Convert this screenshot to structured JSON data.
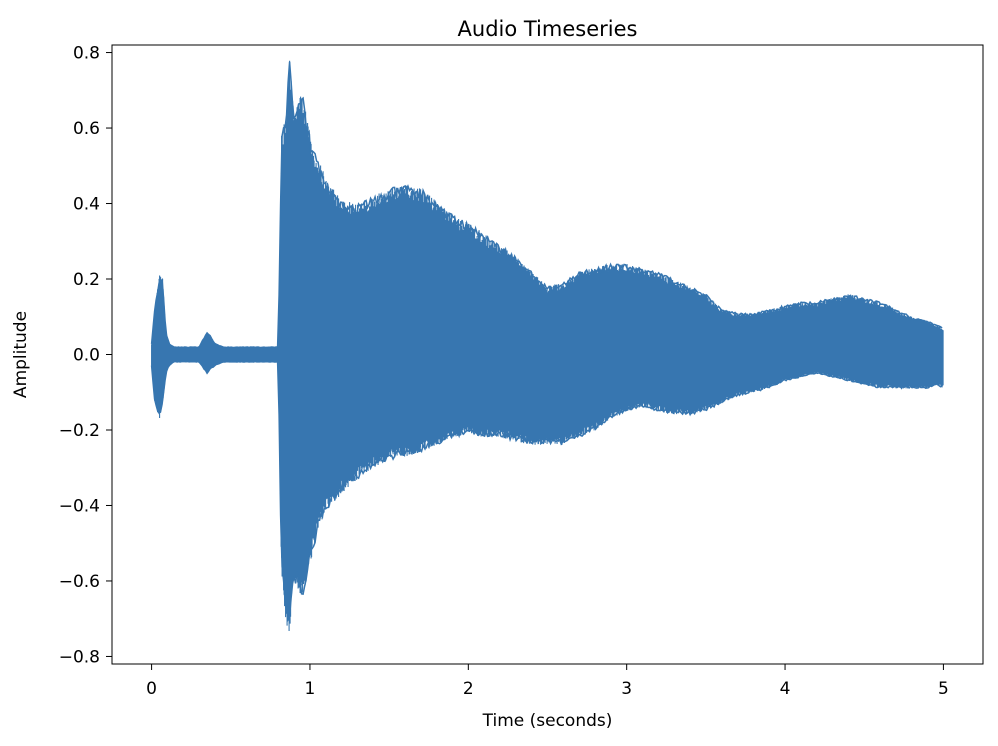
{
  "chart_data": {
    "type": "line",
    "title": "Audio Timeseries",
    "xlabel": "Time (seconds)",
    "ylabel": "Amplitude",
    "xlim": [
      -0.25,
      5.25
    ],
    "ylim": [
      -0.82,
      0.82
    ],
    "x_ticks": [
      0,
      1,
      2,
      3,
      4,
      5
    ],
    "x_tick_labels": [
      "0",
      "1",
      "2",
      "3",
      "4",
      "5"
    ],
    "y_ticks": [
      -0.8,
      -0.6,
      -0.4,
      -0.2,
      0.0,
      0.2,
      0.4,
      0.6,
      0.8
    ],
    "y_tick_labels": [
      "−0.8",
      "−0.6",
      "−0.4",
      "−0.2",
      "0.0",
      "0.2",
      "0.4",
      "0.6",
      "0.8"
    ],
    "grid": false,
    "series": [
      {
        "color": "#3776b0",
        "envelope": {
          "x": [
            0.0,
            0.02,
            0.05,
            0.07,
            0.09,
            0.11,
            0.14,
            0.3,
            0.35,
            0.37,
            0.4,
            0.45,
            0.6,
            0.8,
            0.81,
            0.82,
            0.85,
            0.87,
            0.9,
            0.95,
            1.0,
            1.05,
            1.1,
            1.2,
            1.3,
            1.4,
            1.5,
            1.6,
            1.7,
            1.8,
            1.9,
            2.0,
            2.1,
            2.2,
            2.3,
            2.4,
            2.5,
            2.6,
            2.7,
            2.8,
            2.9,
            3.0,
            3.1,
            3.2,
            3.3,
            3.4,
            3.5,
            3.6,
            3.7,
            3.8,
            3.9,
            4.0,
            4.1,
            4.2,
            4.3,
            4.4,
            4.5,
            4.6,
            4.7,
            4.8,
            4.9,
            4.95,
            5.0
          ],
          "upper": [
            0.03,
            0.12,
            0.21,
            0.2,
            0.06,
            0.03,
            0.02,
            0.02,
            0.06,
            0.05,
            0.03,
            0.02,
            0.02,
            0.02,
            0.3,
            0.58,
            0.64,
            0.79,
            0.63,
            0.7,
            0.58,
            0.52,
            0.47,
            0.41,
            0.4,
            0.42,
            0.44,
            0.45,
            0.44,
            0.41,
            0.37,
            0.35,
            0.32,
            0.29,
            0.26,
            0.22,
            0.18,
            0.19,
            0.22,
            0.23,
            0.24,
            0.24,
            0.23,
            0.22,
            0.2,
            0.18,
            0.16,
            0.12,
            0.11,
            0.11,
            0.12,
            0.13,
            0.14,
            0.14,
            0.15,
            0.16,
            0.15,
            0.14,
            0.12,
            0.1,
            0.09,
            0.08,
            0.07
          ],
          "lower": [
            -0.03,
            -0.13,
            -0.17,
            -0.13,
            -0.05,
            -0.03,
            -0.02,
            -0.02,
            -0.05,
            -0.04,
            -0.03,
            -0.02,
            -0.02,
            -0.02,
            -0.3,
            -0.58,
            -0.72,
            -0.74,
            -0.6,
            -0.65,
            -0.56,
            -0.47,
            -0.42,
            -0.37,
            -0.33,
            -0.3,
            -0.28,
            -0.27,
            -0.26,
            -0.24,
            -0.22,
            -0.21,
            -0.22,
            -0.22,
            -0.23,
            -0.24,
            -0.24,
            -0.24,
            -0.22,
            -0.2,
            -0.17,
            -0.15,
            -0.14,
            -0.15,
            -0.16,
            -0.16,
            -0.15,
            -0.13,
            -0.11,
            -0.1,
            -0.09,
            -0.07,
            -0.06,
            -0.05,
            -0.06,
            -0.07,
            -0.08,
            -0.09,
            -0.09,
            -0.09,
            -0.09,
            -0.08,
            -0.09
          ]
        }
      }
    ]
  }
}
